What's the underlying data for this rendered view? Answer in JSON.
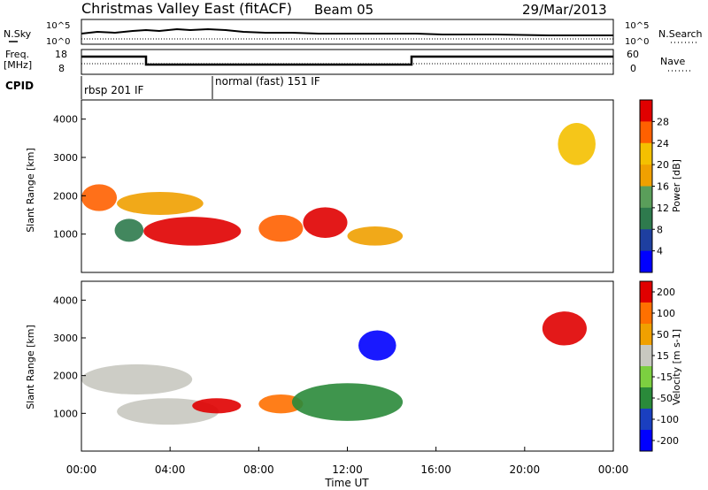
{
  "header": {
    "title": "Christmas Valley East (fitACF)",
    "beam": "Beam 05",
    "date": "29/Mar/2013"
  },
  "panels": {
    "nsky": {
      "label": "N.Sky",
      "ticks": [
        "10^5",
        "10^0"
      ],
      "right_label": "N.Search",
      "right_ticks": [
        "10^5",
        "10^0"
      ]
    },
    "freq": {
      "label_line1": "Freq.",
      "label_line2": "[MHz]",
      "ticks": [
        "18",
        "8"
      ],
      "right_label": "Nave",
      "right_ticks": [
        "60",
        "0"
      ]
    },
    "cpid": {
      "label": "CPID",
      "modes": [
        "rbsp 201 IF",
        "normal (fast) 151 IF"
      ]
    }
  },
  "colors": {
    "power_scale": [
      "#0000ff",
      "#1e3fa0",
      "#2e7a4d",
      "#5a9e5a",
      "#f0a000",
      "#f4c000",
      "#ff6000",
      "#e00000"
    ],
    "velocity_scale": [
      "#0000ff",
      "#1a3fc0",
      "#2a8a3a",
      "#7ccf40",
      "#c8c8c0",
      "#f0a000",
      "#ff7000",
      "#e00000"
    ]
  },
  "chart_data": [
    {
      "type": "heatmap",
      "title": "",
      "xlabel": "",
      "ylabel": "Slant Range [km]",
      "x_ticks": [
        "00:00",
        "04:00",
        "08:00",
        "12:00",
        "16:00",
        "20:00",
        "00:00"
      ],
      "y_ticks": [
        "1000",
        "2000",
        "3000",
        "4000"
      ],
      "ylim": [
        0,
        4500
      ],
      "colorbar": {
        "label": "Power [dB]",
        "ticks": [
          "4",
          "8",
          "12",
          "16",
          "20",
          "24",
          "28"
        ],
        "range": [
          0,
          32
        ]
      },
      "blobs": [
        {
          "t0": 2.8,
          "t1": 7.2,
          "r0": 700,
          "r1": 1450,
          "value": 28
        },
        {
          "t0": 1.5,
          "t1": 2.8,
          "r0": 800,
          "r1": 1400,
          "value": 10
        },
        {
          "t0": 8.0,
          "t1": 10.0,
          "r0": 800,
          "r1": 1500,
          "value": 24
        },
        {
          "t0": 10.0,
          "t1": 12.0,
          "r0": 900,
          "r1": 1700,
          "value": 28
        },
        {
          "t0": 12.0,
          "t1": 14.5,
          "r0": 700,
          "r1": 1200,
          "value": 18
        },
        {
          "t0": 0.0,
          "t1": 1.6,
          "r0": 1600,
          "r1": 2300,
          "value": 24
        },
        {
          "t0": 1.6,
          "t1": 5.5,
          "r0": 1500,
          "r1": 2100,
          "value": 16
        },
        {
          "t0": 21.5,
          "t1": 23.2,
          "r0": 2800,
          "r1": 3900,
          "value": 20
        }
      ]
    },
    {
      "type": "heatmap",
      "title": "",
      "xlabel": "Time UT",
      "ylabel": "Slant Range [km]",
      "x_ticks": [
        "00:00",
        "04:00",
        "08:00",
        "12:00",
        "16:00",
        "20:00",
        "00:00"
      ],
      "y_ticks": [
        "1000",
        "2000",
        "3000",
        "4000"
      ],
      "ylim": [
        0,
        4500
      ],
      "colorbar": {
        "label": "Velocity [m s-1]",
        "ticks": [
          "200",
          "100",
          "50",
          "15",
          "-15",
          "-50",
          "-100",
          "-200"
        ],
        "range": [
          -250,
          250
        ]
      },
      "blobs": [
        {
          "t0": 1.6,
          "t1": 6.2,
          "r0": 700,
          "r1": 1400,
          "value": 40
        },
        {
          "t0": 5.0,
          "t1": 7.2,
          "r0": 1000,
          "r1": 1400,
          "value": 200
        },
        {
          "t0": 8.0,
          "t1": 10.0,
          "r0": 1000,
          "r1": 1500,
          "value": 150
        },
        {
          "t0": 9.5,
          "t1": 14.5,
          "r0": 800,
          "r1": 1800,
          "value": -80
        },
        {
          "t0": 0.0,
          "t1": 5.0,
          "r0": 1500,
          "r1": 2300,
          "value": 0
        },
        {
          "t0": 12.5,
          "t1": 14.2,
          "r0": 2400,
          "r1": 3200,
          "value": -200
        },
        {
          "t0": 20.8,
          "t1": 22.8,
          "r0": 2800,
          "r1": 3700,
          "value": 200
        }
      ]
    }
  ]
}
